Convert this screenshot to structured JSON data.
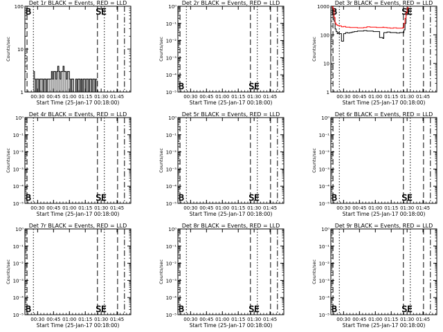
{
  "figure": {
    "x_tick_labels": [
      "00:30",
      "00:45",
      "01:00",
      "01:15",
      "01:30",
      "01:45"
    ],
    "x_axis_label": "Start Time (25-Jan-17 00:18:00)",
    "y_axis_label": "Counts/sec",
    "marker_labels": {
      "left": "B",
      "right": "SE"
    },
    "colors": {
      "events": "#000000",
      "lld": "#ff0000",
      "axes": "#000000"
    }
  },
  "chart_data": [
    {
      "type": "line",
      "title": "Det 1r BLACK = Events, RED = LLD",
      "xlabel": "Start Time (25-Jan-17 00:18:00)",
      "ylabel": "Counts/sec",
      "x_range_minutes_since_start": [
        0,
        100
      ],
      "y_scale": "log",
      "y_tick_labels": [
        "1",
        "10",
        "100"
      ],
      "ylim": [
        1,
        100
      ],
      "dashed_markers_minutes": [
        2.0,
        68.5,
        87.5
      ],
      "dotted_markers_minutes": [
        8.0,
        75.0
      ],
      "series": [
        {
          "name": "Events",
          "color": "#000000",
          "x": [
            8,
            9,
            10,
            11,
            12,
            13,
            14,
            15,
            16,
            17,
            18,
            19,
            20,
            21,
            22,
            23,
            24,
            25,
            26,
            27,
            28,
            29,
            30,
            31,
            32,
            33,
            34,
            35,
            36,
            37,
            38,
            39,
            40,
            41,
            42,
            43,
            44,
            45,
            46,
            47,
            48,
            49,
            50,
            51,
            52,
            53,
            54,
            55,
            56,
            57,
            58,
            59,
            60,
            61,
            62,
            63,
            64,
            65,
            66,
            67,
            68
          ],
          "values": [
            3,
            2,
            1,
            2,
            2,
            1,
            2,
            2,
            2,
            1,
            2,
            2,
            1,
            2,
            2,
            2,
            2,
            3,
            2,
            3,
            3,
            2,
            3,
            4,
            3,
            2,
            3,
            3,
            4,
            3,
            3,
            2,
            3,
            3,
            2,
            1,
            2,
            2,
            1,
            1,
            2,
            1,
            2,
            2,
            1,
            2,
            1,
            2,
            2,
            1,
            2,
            2,
            1,
            2,
            2,
            1,
            2,
            2,
            1,
            2,
            2
          ]
        }
      ],
      "marker_labels": {
        "left": "B",
        "right": "SE"
      }
    },
    {
      "type": "line",
      "title": "Det 2r BLACK = Events, RED = LLD",
      "xlabel": "Start Time (25-Jan-17 00:18:00)",
      "ylabel": "Counts/sec",
      "y_scale": "log",
      "y_tick_labels": [
        "10⁻⁵",
        "10⁻⁴",
        "10⁻³",
        "10⁻²",
        "10⁻¹",
        "10⁰"
      ],
      "ylim": [
        1e-05,
        1
      ],
      "dashed_markers_minutes": [
        2.0,
        68.5,
        87.5
      ],
      "dotted_markers_minutes": [
        8.0,
        75.0
      ],
      "series": [],
      "marker_labels": {
        "left": "B",
        "right": "SE"
      }
    },
    {
      "type": "line",
      "title": "Det 3r BLACK = Events, RED = LLD",
      "xlabel": "Start Time (25-Jan-17 00:18:00)",
      "ylabel": "Counts/sec",
      "y_scale": "log",
      "y_tick_labels": [
        "1",
        "10",
        "100",
        "1000"
      ],
      "ylim": [
        1,
        1000
      ],
      "dashed_markers_minutes": [
        2.0,
        68.5,
        87.5
      ],
      "dotted_markers_minutes": [
        8.0,
        75.0
      ],
      "series": [
        {
          "name": "Events",
          "color": "#000000",
          "x": [
            1,
            2,
            3,
            4,
            5,
            6,
            7,
            8,
            10,
            12,
            14,
            16,
            18,
            20,
            22,
            25,
            28,
            31,
            34,
            37,
            40,
            43,
            46,
            49,
            50,
            53,
            56,
            59,
            62,
            65,
            68,
            69,
            70,
            71,
            72,
            73
          ],
          "values": [
            900,
            700,
            300,
            160,
            130,
            110,
            120,
            110,
            60,
            110,
            120,
            115,
            120,
            125,
            130,
            135,
            135,
            140,
            135,
            135,
            130,
            130,
            80,
            75,
            120,
            125,
            120,
            120,
            115,
            120,
            120,
            150,
            250,
            500,
            800,
            900
          ]
        },
        {
          "name": "LLD",
          "color": "#ff0000",
          "x": [
            1,
            2,
            3,
            4,
            5,
            6,
            7,
            8,
            10,
            12,
            14,
            16,
            18,
            20,
            22,
            25,
            28,
            31,
            34,
            37,
            40,
            43,
            46,
            49,
            50,
            53,
            56,
            59,
            62,
            65,
            68,
            69,
            70,
            71,
            72,
            73
          ],
          "values": [
            950,
            800,
            400,
            260,
            225,
            215,
            210,
            205,
            190,
            195,
            185,
            185,
            180,
            180,
            180,
            175,
            175,
            180,
            190,
            185,
            185,
            180,
            180,
            185,
            180,
            175,
            170,
            175,
            170,
            170,
            180,
            250,
            380,
            600,
            850,
            950
          ]
        }
      ],
      "marker_labels": {
        "left": "B",
        "right": "SE"
      }
    },
    {
      "type": "line",
      "title": "Det 4r BLACK = Events, RED = LLD",
      "xlabel": "Start Time (25-Jan-17 00:18:00)",
      "ylabel": "Counts/sec",
      "y_scale": "log",
      "y_tick_labels": [
        "10⁻⁵",
        "10⁻⁴",
        "10⁻³",
        "10⁻²",
        "10⁻¹",
        "10⁰"
      ],
      "ylim": [
        1e-05,
        1
      ],
      "dashed_markers_minutes": [
        2.0,
        68.5,
        87.5
      ],
      "dotted_markers_minutes": [
        8.0,
        75.0
      ],
      "series": [],
      "marker_labels": {
        "left": "B",
        "right": "SE"
      }
    },
    {
      "type": "line",
      "title": "Det 5r BLACK = Events, RED = LLD",
      "xlabel": "Start Time (25-Jan-17 00:18:00)",
      "ylabel": "Counts/sec",
      "y_scale": "log",
      "y_tick_labels": [
        "10⁻⁵",
        "10⁻⁴",
        "10⁻³",
        "10⁻²",
        "10⁻¹",
        "10⁰"
      ],
      "ylim": [
        1e-05,
        1
      ],
      "dashed_markers_minutes": [
        2.0,
        68.5,
        87.5
      ],
      "dotted_markers_minutes": [
        8.0,
        75.0
      ],
      "series": [],
      "marker_labels": {
        "left": "B",
        "right": "SE"
      }
    },
    {
      "type": "line",
      "title": "Det 6r BLACK = Events, RED = LLD",
      "xlabel": "Start Time (25-Jan-17 00:18:00)",
      "ylabel": "Counts/sec",
      "y_scale": "log",
      "y_tick_labels": [
        "10⁻⁵",
        "10⁻⁴",
        "10⁻³",
        "10⁻²",
        "10⁻¹",
        "10⁰"
      ],
      "ylim": [
        1e-05,
        1
      ],
      "dashed_markers_minutes": [
        2.0,
        68.5,
        87.5
      ],
      "dotted_markers_minutes": [
        8.0,
        75.0
      ],
      "series": [],
      "marker_labels": {
        "left": "B",
        "right": "SE"
      }
    },
    {
      "type": "line",
      "title": "Det 7r BLACK = Events, RED = LLD",
      "xlabel": "Start Time (25-Jan-17 00:18:00)",
      "ylabel": "Counts/sec",
      "y_scale": "log",
      "y_tick_labels": [
        "10⁻⁵",
        "10⁻⁴",
        "10⁻³",
        "10⁻²",
        "10⁻¹",
        "10⁰"
      ],
      "ylim": [
        1e-05,
        1
      ],
      "dashed_markers_minutes": [
        2.0,
        68.5,
        87.5
      ],
      "dotted_markers_minutes": [
        8.0,
        75.0
      ],
      "series": [],
      "marker_labels": {
        "left": "B",
        "right": "SE"
      }
    },
    {
      "type": "line",
      "title": "Det 8r BLACK = Events, RED = LLD",
      "xlabel": "Start Time (25-Jan-17 00:18:00)",
      "ylabel": "Counts/sec",
      "y_scale": "log",
      "y_tick_labels": [
        "10⁻⁵",
        "10⁻⁴",
        "10⁻³",
        "10⁻²",
        "10⁻¹",
        "10⁰"
      ],
      "ylim": [
        1e-05,
        1
      ],
      "dashed_markers_minutes": [
        2.0,
        68.5,
        87.5
      ],
      "dotted_markers_minutes": [
        8.0,
        75.0
      ],
      "series": [],
      "marker_labels": {
        "left": "B",
        "right": "SE"
      }
    },
    {
      "type": "line",
      "title": "Det 9r BLACK = Events, RED = LLD",
      "xlabel": "Start Time (25-Jan-17 00:18:00)",
      "ylabel": "Counts/sec",
      "y_scale": "log",
      "y_tick_labels": [
        "10⁻⁵",
        "10⁻⁴",
        "10⁻³",
        "10⁻²",
        "10⁻¹",
        "10⁰"
      ],
      "ylim": [
        1e-05,
        1
      ],
      "dashed_markers_minutes": [
        2.0,
        68.5,
        87.5
      ],
      "dotted_markers_minutes": [
        8.0,
        75.0
      ],
      "series": [],
      "marker_labels": {
        "left": "B",
        "right": "SE"
      }
    }
  ]
}
